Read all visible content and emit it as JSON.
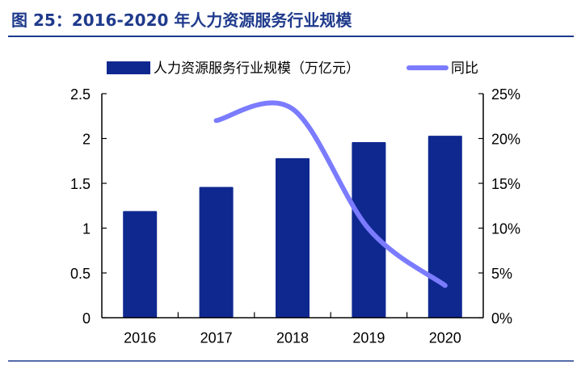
{
  "title": "图 25：2016-2020 年人力资源服务行业规模",
  "colors": {
    "title": "#1F3A8C",
    "bar": "#0F2890",
    "line": "#7B7BFF",
    "rule": "#1F3A8C"
  },
  "chart_data": {
    "type": "bar+line",
    "categories": [
      "2016",
      "2017",
      "2018",
      "2019",
      "2020"
    ],
    "series": [
      {
        "name": "人力资源服务行业规模（万亿元）",
        "type": "bar",
        "axis": "left",
        "values": [
          1.19,
          1.46,
          1.78,
          1.96,
          2.03
        ]
      },
      {
        "name": "同比",
        "type": "line",
        "axis": "right",
        "smooth": true,
        "values": [
          null,
          22.0,
          23.3,
          9.9,
          3.6
        ]
      }
    ],
    "y_left": {
      "range": [
        0,
        2.5
      ],
      "ticks": [
        "0",
        "0.5",
        "1",
        "1.5",
        "2",
        "2.5"
      ]
    },
    "y_right": {
      "range": [
        0,
        25
      ],
      "ticks": [
        "0%",
        "5%",
        "10%",
        "15%",
        "20%",
        "25%"
      ]
    },
    "legend": "top",
    "grid": false
  }
}
